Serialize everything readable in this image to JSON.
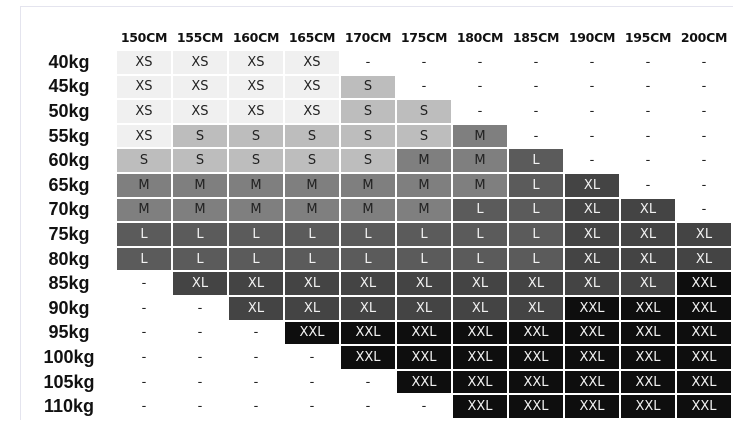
{
  "heights": [
    "150CM",
    "155CM",
    "160CM",
    "165CM",
    "170CM",
    "175CM",
    "180CM",
    "185CM",
    "190CM",
    "195CM",
    "200CM"
  ],
  "size_colors": {
    "XS": "#f0f0f0",
    "S": "#bdbdbd",
    "M": "#7f7f7f",
    "L": "#5b5b5b",
    "XL": "#444444",
    "XXL": "#0e0e0e",
    "-": "#ffffff"
  },
  "rows": [
    {
      "weight": "40kg",
      "sizes": [
        "XS",
        "XS",
        "XS",
        "XS",
        "-",
        "-",
        "-",
        "-",
        "-",
        "-",
        "-"
      ]
    },
    {
      "weight": "45kg",
      "sizes": [
        "XS",
        "XS",
        "XS",
        "XS",
        "S",
        "-",
        "-",
        "-",
        "-",
        "-",
        "-"
      ]
    },
    {
      "weight": "50kg",
      "sizes": [
        "XS",
        "XS",
        "XS",
        "XS",
        "S",
        "S",
        "-",
        "-",
        "-",
        "-",
        "-"
      ]
    },
    {
      "weight": "55kg",
      "sizes": [
        "XS",
        "S",
        "S",
        "S",
        "S",
        "S",
        "M",
        "-",
        "-",
        "-",
        "-"
      ]
    },
    {
      "weight": "60kg",
      "sizes": [
        "S",
        "S",
        "S",
        "S",
        "S",
        "M",
        "M",
        "L",
        "-",
        "-",
        "-"
      ]
    },
    {
      "weight": "65kg",
      "sizes": [
        "M",
        "M",
        "M",
        "M",
        "M",
        "M",
        "M",
        "L",
        "XL",
        "-",
        "-"
      ]
    },
    {
      "weight": "70kg",
      "sizes": [
        "M",
        "M",
        "M",
        "M",
        "M",
        "M",
        "L",
        "L",
        "XL",
        "XL",
        "-"
      ]
    },
    {
      "weight": "75kg",
      "sizes": [
        "L",
        "L",
        "L",
        "L",
        "L",
        "L",
        "L",
        "L",
        "XL",
        "XL",
        "XL"
      ]
    },
    {
      "weight": "80kg",
      "sizes": [
        "L",
        "L",
        "L",
        "L",
        "L",
        "L",
        "L",
        "L",
        "XL",
        "XL",
        "XL"
      ]
    },
    {
      "weight": "85kg",
      "sizes": [
        "-",
        "XL",
        "XL",
        "XL",
        "XL",
        "XL",
        "XL",
        "XL",
        "XL",
        "XL",
        "XXL"
      ]
    },
    {
      "weight": "90kg",
      "sizes": [
        "-",
        "-",
        "XL",
        "XL",
        "XL",
        "XL",
        "XL",
        "XL",
        "XXL",
        "XXL",
        "XXL"
      ]
    },
    {
      "weight": "95kg",
      "sizes": [
        "-",
        "-",
        "-",
        "XXL",
        "XXL",
        "XXL",
        "XXL",
        "XXL",
        "XXL",
        "XXL",
        "XXL"
      ]
    },
    {
      "weight": "100kg",
      "sizes": [
        "-",
        "-",
        "-",
        "-",
        "XXL",
        "XXL",
        "XXL",
        "XXL",
        "XXL",
        "XXL",
        "XXL"
      ]
    },
    {
      "weight": "105kg",
      "sizes": [
        "-",
        "-",
        "-",
        "-",
        "-",
        "XXL",
        "XXL",
        "XXL",
        "XXL",
        "XXL",
        "XXL"
      ]
    },
    {
      "weight": "110kg",
      "sizes": [
        "-",
        "-",
        "-",
        "-",
        "-",
        "-",
        "XXL",
        "XXL",
        "XXL",
        "XXL",
        "XXL"
      ]
    }
  ]
}
